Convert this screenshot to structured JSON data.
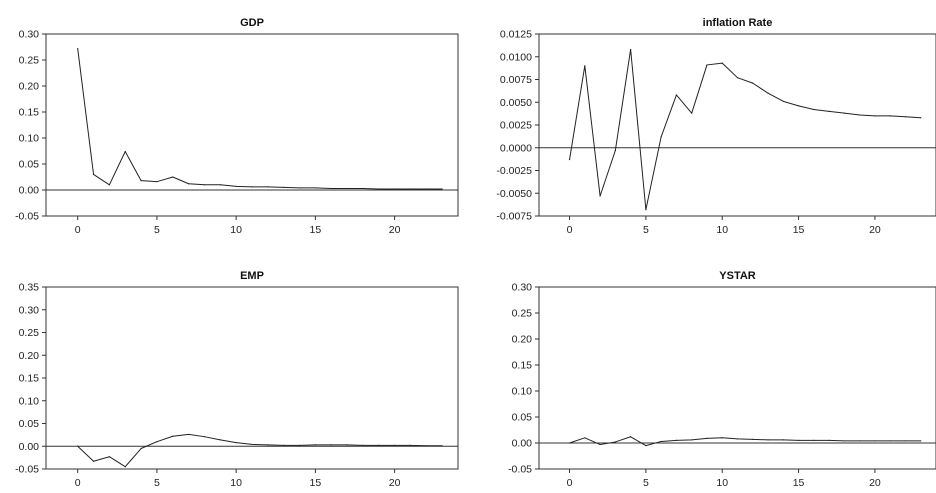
{
  "chart_data": [
    {
      "type": "line",
      "title": "GDP",
      "xlabel": "",
      "ylabel": "",
      "xlim": [
        -2,
        24
      ],
      "ylim": [
        -0.05,
        0.3
      ],
      "x_ticks": [
        0,
        5,
        10,
        15,
        20
      ],
      "y_ticks": [
        "0.30",
        "0.25",
        "0.20",
        "0.15",
        "0.10",
        "0.05",
        "0.00",
        "-0.05"
      ],
      "zero_line": true,
      "series": [
        {
          "x": [
            0,
            1,
            2,
            3,
            4,
            5,
            6,
            7,
            8,
            9,
            10,
            11,
            12,
            13,
            14,
            15,
            16,
            17,
            18,
            19,
            20,
            21,
            22,
            23
          ],
          "values": [
            0.272,
            0.03,
            0.01,
            0.074,
            0.018,
            0.016,
            0.025,
            0.012,
            0.01,
            0.01,
            0.007,
            0.006,
            0.006,
            0.005,
            0.004,
            0.004,
            0.003,
            0.003,
            0.003,
            0.002,
            0.002,
            0.002,
            0.002,
            0.002
          ]
        }
      ]
    },
    {
      "type": "line",
      "title": "inflation Rate",
      "xlabel": "",
      "ylabel": "",
      "xlim": [
        -2,
        24
      ],
      "ylim": [
        -0.0075,
        0.0125
      ],
      "x_ticks": [
        0,
        5,
        10,
        15,
        20
      ],
      "y_ticks": [
        "0.0125",
        "0.0100",
        "0.0075",
        "0.0050",
        "0.0025",
        "0.0000",
        "-0.0025",
        "-0.0050",
        "-0.0075"
      ],
      "zero_line": true,
      "series": [
        {
          "x": [
            0,
            1,
            2,
            3,
            4,
            5,
            6,
            7,
            8,
            9,
            10,
            11,
            12,
            13,
            14,
            15,
            16,
            17,
            18,
            19,
            20,
            21,
            22,
            23
          ],
          "values": [
            -0.0013,
            0.009,
            -0.0053,
            -0.0003,
            0.0108,
            -0.0068,
            0.0012,
            0.0058,
            0.0038,
            0.0091,
            0.0093,
            0.0077,
            0.0071,
            0.006,
            0.0051,
            0.0046,
            0.0042,
            0.004,
            0.0038,
            0.0036,
            0.0035,
            0.0035,
            0.0034,
            0.0033
          ]
        }
      ]
    },
    {
      "type": "line",
      "title": "EMP",
      "xlabel": "",
      "ylabel": "",
      "xlim": [
        -2,
        24
      ],
      "ylim": [
        -0.05,
        0.35
      ],
      "x_ticks": [
        0,
        5,
        10,
        15,
        20
      ],
      "y_ticks": [
        "0.35",
        "0.30",
        "0.25",
        "0.20",
        "0.15",
        "0.10",
        "0.05",
        "0.00",
        "-0.05"
      ],
      "zero_line": true,
      "series": [
        {
          "x": [
            0,
            1,
            2,
            3,
            4,
            5,
            6,
            7,
            8,
            9,
            10,
            11,
            12,
            13,
            14,
            15,
            16,
            17,
            18,
            19,
            20,
            21,
            22,
            23
          ],
          "values": [
            0.0,
            -0.033,
            -0.023,
            -0.045,
            -0.005,
            0.01,
            0.022,
            0.026,
            0.021,
            0.014,
            0.008,
            0.004,
            0.003,
            0.002,
            0.002,
            0.003,
            0.003,
            0.003,
            0.002,
            0.002,
            0.002,
            0.002,
            0.001,
            0.001
          ]
        }
      ]
    },
    {
      "type": "line",
      "title": "YSTAR",
      "xlabel": "",
      "ylabel": "",
      "xlim": [
        -2,
        24
      ],
      "ylim": [
        -0.05,
        0.3
      ],
      "x_ticks": [
        0,
        5,
        10,
        15,
        20
      ],
      "y_ticks": [
        "0.30",
        "0.25",
        "0.20",
        "0.15",
        "0.10",
        "0.05",
        "0.00",
        "-0.05"
      ],
      "zero_line": true,
      "series": [
        {
          "x": [
            0,
            1,
            2,
            3,
            4,
            5,
            6,
            7,
            8,
            9,
            10,
            11,
            12,
            13,
            14,
            15,
            16,
            17,
            18,
            19,
            20,
            21,
            22,
            23
          ],
          "values": [
            0.0,
            0.01,
            -0.003,
            0.002,
            0.012,
            -0.005,
            0.003,
            0.005,
            0.006,
            0.009,
            0.01,
            0.008,
            0.007,
            0.006,
            0.006,
            0.005,
            0.005,
            0.005,
            0.004,
            0.004,
            0.004,
            0.004,
            0.004,
            0.004
          ]
        }
      ]
    }
  ]
}
